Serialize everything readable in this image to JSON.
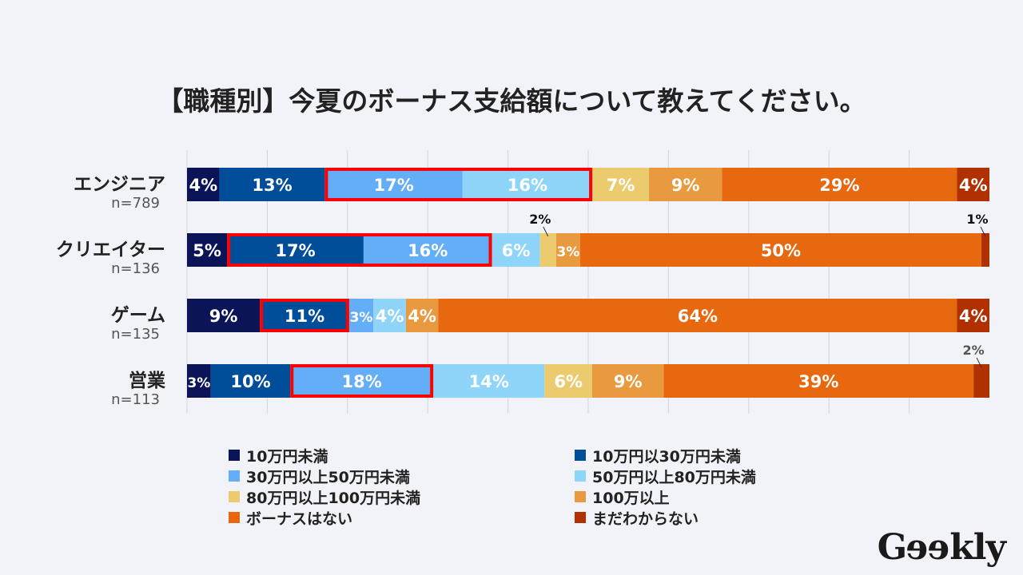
{
  "chart_data": {
    "type": "bar",
    "orientation": "horizontal",
    "stacked": "100%",
    "title": "【職種別】今夏のボーナス支給額について教えてください。",
    "categories": [
      "エンジニア",
      "クリエイター",
      "ゲーム",
      "営業"
    ],
    "sample_sizes": [
      "n=789",
      "n=136",
      "n=135",
      "n=113"
    ],
    "series": [
      {
        "name": "10万円未満",
        "color": "#0b1457",
        "values": [
          4,
          5,
          9,
          3
        ]
      },
      {
        "name": "10万円以30万円未満",
        "color": "#004d99",
        "values": [
          13,
          17,
          11,
          10
        ]
      },
      {
        "name": "30万円以上50万円未満",
        "color": "#63aef7",
        "values": [
          17,
          16,
          3,
          18
        ]
      },
      {
        "name": "50万円以上80万円未満",
        "color": "#8fd5fa",
        "values": [
          16,
          6,
          4,
          14
        ]
      },
      {
        "name": "80万円以上100万円未満",
        "color": "#eccb6e",
        "values": [
          7,
          2,
          0,
          6
        ]
      },
      {
        "name": "100万以上",
        "color": "#ea9a3e",
        "values": [
          9,
          3,
          4,
          9
        ]
      },
      {
        "name": "ボーナスはない",
        "color": "#e86810",
        "values": [
          29,
          50,
          64,
          39
        ]
      },
      {
        "name": "まだわからない",
        "color": "#b03000",
        "values": [
          4,
          1,
          4,
          2
        ]
      }
    ],
    "highlights": [
      [
        2,
        3
      ],
      [
        1,
        2
      ],
      [
        1
      ],
      [
        2
      ]
    ],
    "highlight_color": "#ff0000",
    "grid": true,
    "legend_position": "bottom"
  },
  "logo": "Geekly"
}
